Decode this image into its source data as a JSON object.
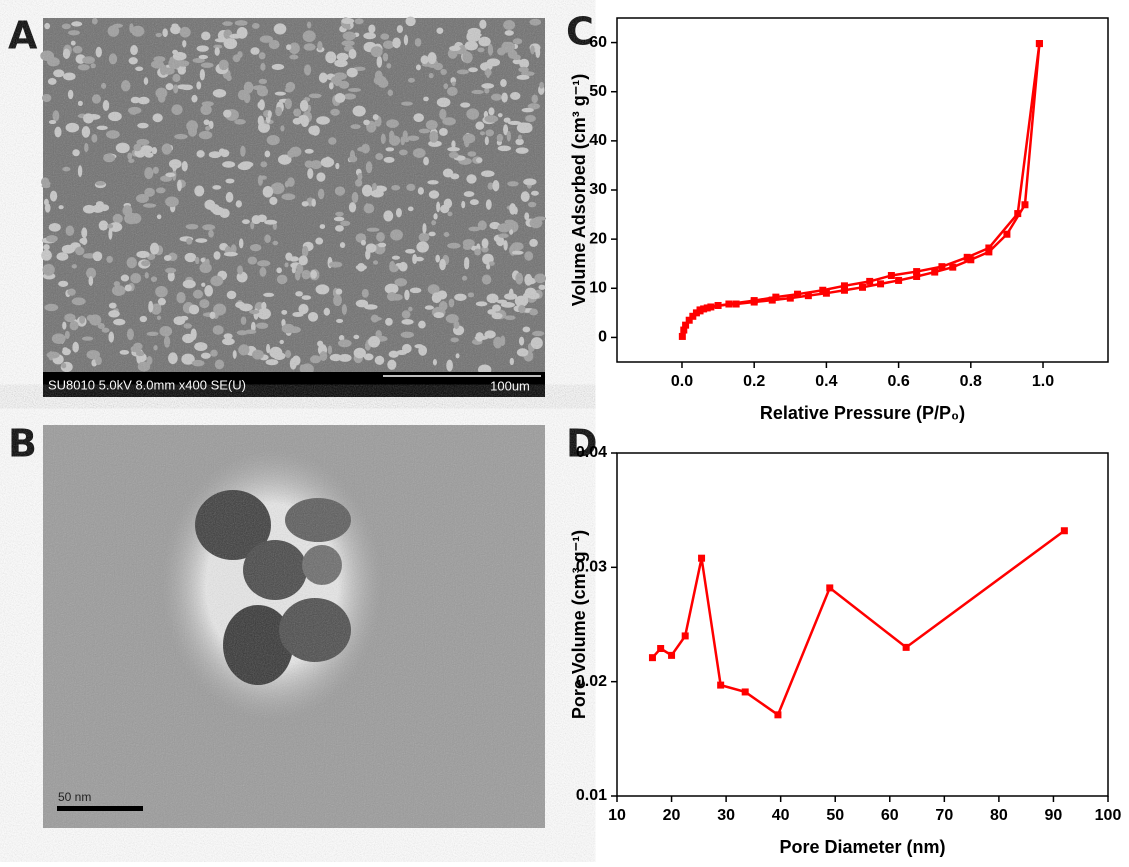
{
  "panel_labels": [
    "A",
    "B",
    "C",
    "D"
  ],
  "sem_image": {
    "caption": "SU8010 5.0kV 8.0mm x400 SE(U)",
    "scale_bar": "100um"
  },
  "tem_image": {
    "scale_bar": "50 nm"
  },
  "chart_data": [
    {
      "type": "line",
      "x_label": "Relative Pressure (P/P₀)",
      "y_label": "Volume Adsorbed (cm³ g⁻¹)",
      "xlim": [
        -0.18,
        1.18
      ],
      "ylim": [
        -5,
        65
      ],
      "xticks": [
        {
          "value": 0,
          "label": "0.0"
        },
        0.2,
        0.4,
        0.6,
        0.8,
        {
          "value": 1,
          "label": "1.0"
        }
      ],
      "yticks": [
        0,
        10,
        20,
        30,
        40,
        50,
        60
      ],
      "series": [
        {
          "color": "#ff0000",
          "x": [
            0.001,
            0.005,
            0.01,
            0.02,
            0.03,
            0.04,
            0.05,
            0.06,
            0.08,
            0.1,
            0.15,
            0.2,
            0.25,
            0.3,
            0.35,
            0.4,
            0.45,
            0.5,
            0.55,
            0.6,
            0.65,
            0.7,
            0.75,
            0.8,
            0.85,
            0.9,
            0.95,
            0.99
          ],
          "values": [
            0.2,
            1.5,
            2.5,
            3.5,
            4.3,
            5.0,
            5.4,
            5.8,
            6.2,
            6.5,
            6.8,
            7.2,
            7.6,
            8.0,
            8.5,
            9.0,
            9.6,
            10.2,
            10.9,
            11.6,
            12.4,
            13.3,
            14.3,
            15.8,
            17.4,
            21,
            27,
            59.8
          ]
        },
        {
          "color": "#ff0000",
          "x": [
            0.99,
            0.93,
            0.85,
            0.79,
            0.72,
            0.65,
            0.58,
            0.52,
            0.45,
            0.39,
            0.32,
            0.26,
            0.2,
            0.13,
            0.07,
            0.05
          ],
          "values": [
            59.8,
            25.2,
            18.2,
            16.3,
            14.4,
            13.4,
            12.6,
            11.4,
            10.5,
            9.6,
            8.8,
            8.2,
            7.5,
            6.8,
            6.0,
            5.6
          ]
        }
      ]
    },
    {
      "type": "line",
      "x_label": "Pore Diameter (nm)",
      "y_label": "Pore Volume (cm³ g⁻¹)",
      "xlim": [
        10,
        100
      ],
      "ylim": [
        0.01,
        0.04
      ],
      "xticks": [
        10,
        20,
        30,
        40,
        50,
        60,
        70,
        80,
        90,
        100
      ],
      "yticks": [
        0.01,
        0.02,
        0.03,
        0.04
      ],
      "series": [
        {
          "color": "#ff0000",
          "x": [
            16.5,
            18,
            20,
            22.5,
            25.5,
            29,
            33.5,
            39.5,
            49,
            63,
            92
          ],
          "values": [
            0.0221,
            0.0229,
            0.0223,
            0.024,
            0.0308,
            0.0197,
            0.0191,
            0.0171,
            0.0282,
            0.023,
            0.0332
          ]
        }
      ]
    }
  ]
}
